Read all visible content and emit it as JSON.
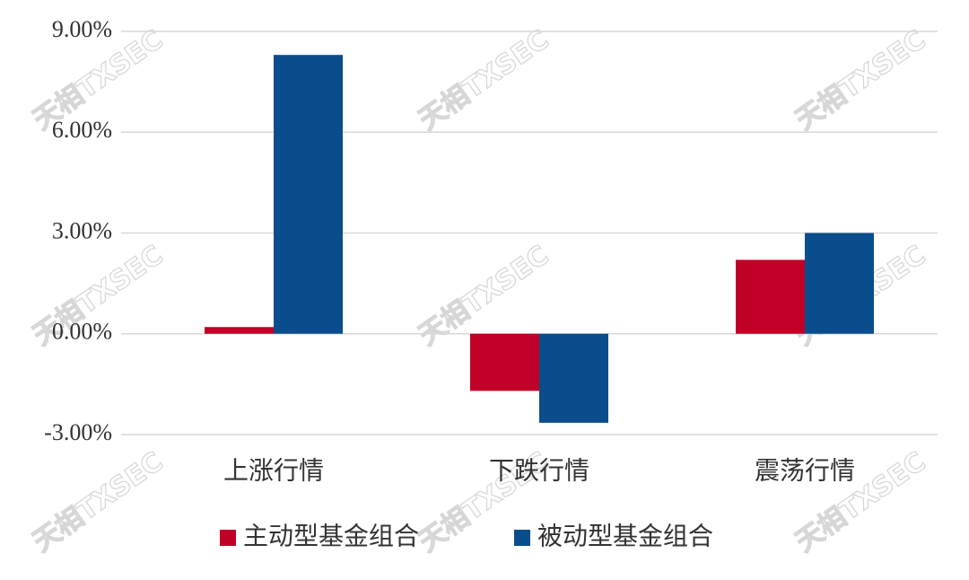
{
  "chart_data": {
    "type": "bar",
    "categories": [
      "上涨行情",
      "下跌行情",
      "震荡行情"
    ],
    "series": [
      {
        "name": "主动型基金组合",
        "color": "#c00026",
        "values": [
          0.2,
          -1.7,
          2.2
        ]
      },
      {
        "name": "被动型基金组合",
        "color": "#0a4d8c",
        "values": [
          8.3,
          -2.65,
          3.0
        ]
      }
    ],
    "ylim": [
      -3,
      9
    ],
    "yticks": [
      {
        "value": -3,
        "label": "-3.00%"
      },
      {
        "value": 0,
        "label": "0.00%"
      },
      {
        "value": 3,
        "label": "3.00%"
      },
      {
        "value": 6,
        "label": "6.00%"
      },
      {
        "value": 9,
        "label": "9.00%"
      }
    ],
    "grid": true,
    "legend": "bottom",
    "watermark": "天相TXSEC"
  }
}
